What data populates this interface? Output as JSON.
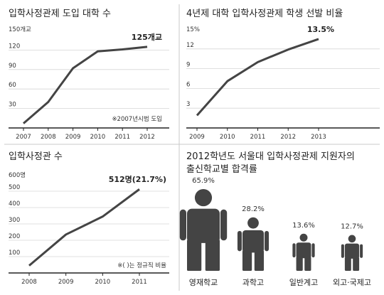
{
  "colors": {
    "line": "#444444",
    "axis": "#222222",
    "grid": "#d6d6d6",
    "divider": "#c8c8c8",
    "figure": "#444444"
  },
  "chart_data": [
    {
      "type": "line",
      "title": "입학사정관제 도입 대학 수",
      "unit_label": "150개교",
      "x": [
        "2007",
        "2008",
        "2009",
        "2010",
        "2011",
        "2012"
      ],
      "values": [
        7,
        40,
        92,
        118,
        121,
        125
      ],
      "yticks": [
        "120",
        "90",
        "60",
        "30"
      ],
      "ylim": [
        0,
        150
      ],
      "end_label": "125개교",
      "note": "※2007년시범 도입"
    },
    {
      "type": "line",
      "title": "4년제 대학 입학사정관제 학생 선발 비율",
      "unit_label": "15%",
      "x": [
        "2009",
        "2010",
        "2011",
        "2012",
        "2013"
      ],
      "values": [
        1.9,
        7.1,
        10.0,
        11.9,
        13.5
      ],
      "yticks": [
        "12",
        "9",
        "6",
        "3"
      ],
      "ylim": [
        0,
        15
      ],
      "end_label": "13.5%"
    },
    {
      "type": "line",
      "title": "입학사정관 수",
      "unit_label": "600명",
      "x": [
        "2008",
        "2009",
        "2010",
        "2011"
      ],
      "values": [
        45,
        235,
        345,
        512
      ],
      "yticks": [
        "500",
        "400",
        "300",
        "200",
        "100"
      ],
      "ylim": [
        0,
        600
      ],
      "end_label": "512명(21.7%)",
      "note": "※( )는 정규직 비율"
    },
    {
      "type": "bar",
      "title_lines": [
        "2012학년도 서울대 입학사정관제 지원자의",
        "출신학교별 합격률"
      ],
      "categories": [
        "영재학교",
        "과학고",
        "일반계고",
        "외고·국제고"
      ],
      "values": [
        65.9,
        28.2,
        13.6,
        12.7
      ],
      "value_labels": [
        "65.9%",
        "28.2%",
        "13.6%",
        "12.7%"
      ]
    }
  ]
}
